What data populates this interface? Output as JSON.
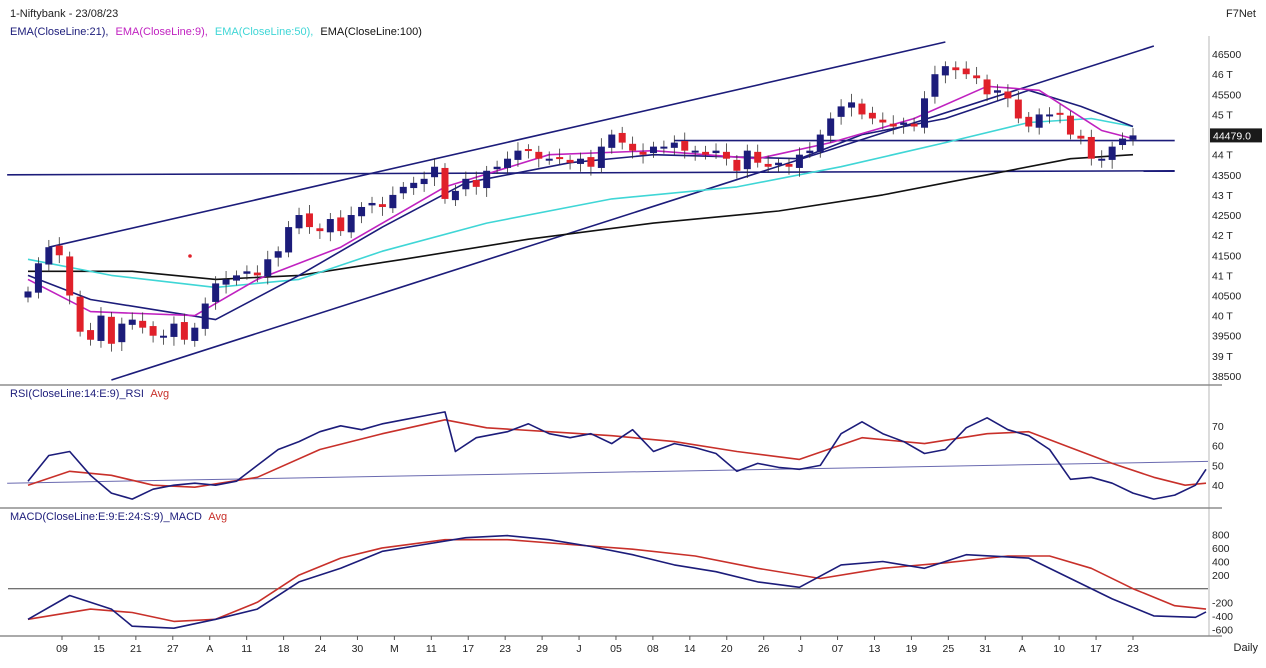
{
  "header": {
    "title": "1-Niftybank - 23/08/23",
    "brand": "F7Net",
    "ema_labels": [
      {
        "text": "EMA(CloseLine:21),",
        "color": "#1c1c7a"
      },
      {
        "text": "EMA(CloseLine:9),",
        "color": "#c022c0"
      },
      {
        "text": "EMA(CloseLine:50),",
        "color": "#3fd6d6"
      },
      {
        "text": "EMA(CloseLine:100)",
        "color": "#111111"
      }
    ],
    "rsi_label": "RSI(CloseLine:14:E:9)_RSI",
    "rsi_avg": "Avg",
    "macd_label": "MACD(CloseLine:E:9:E:24:S:9)_MACD",
    "macd_avg": "Avg",
    "period": "Daily",
    "last_price": "44479.0"
  },
  "colors": {
    "bull": "#1c1c7a",
    "bear": "#e0202a",
    "ema9": "#c022c0",
    "ema21": "#1c1c7a",
    "ema50": "#3fd6d6",
    "ema100": "#111111",
    "avg": "#c8302a",
    "trend": "#1c1c7a"
  },
  "chart_data": [
    {
      "type": "candlestick",
      "panel": "price",
      "ylim": [
        38300,
        46900
      ],
      "yticks": [
        "46500",
        "46 T",
        "45500",
        "45 T",
        "44500",
        "44 T",
        "43500",
        "43 T",
        "42500",
        "42 T",
        "41500",
        "41 T",
        "40500",
        "40 T",
        "39500",
        "39 T",
        "38500"
      ],
      "x_labels": [
        "09",
        "15",
        "21",
        "27",
        "A",
        "11",
        "18",
        "24",
        "30",
        "M",
        "11",
        "17",
        "23",
        "29",
        "J",
        "05",
        "08",
        "14",
        "20",
        "26",
        "J",
        "07",
        "13",
        "19",
        "25",
        "31",
        "A",
        "10",
        "17",
        "23"
      ],
      "closes": [
        40600,
        41300,
        41700,
        41500,
        40500,
        39600,
        39400,
        40000,
        39300,
        39800,
        39900,
        39700,
        39500,
        39500,
        39800,
        39400,
        39700,
        40300,
        40800,
        40900,
        41000,
        41100,
        41000,
        41400,
        41600,
        42200,
        42500,
        42200,
        42100,
        42400,
        42100,
        42500,
        42700,
        42800,
        42700,
        43000,
        43200,
        43300,
        43400,
        43700,
        42900,
        43100,
        43400,
        43200,
        43600,
        43700,
        43900,
        44100,
        44100,
        43900,
        43900,
        43900,
        43800,
        43900,
        43700,
        44200,
        44500,
        44300,
        44100,
        44000,
        44200,
        44200,
        44300,
        44100,
        44100,
        44000,
        44100,
        43900,
        43600,
        44100,
        43800,
        43700,
        43800,
        43700,
        44000,
        44100,
        44500,
        44900,
        45200,
        45300,
        45000,
        44900,
        44800,
        44700,
        44800,
        44700,
        45400,
        46000,
        46200,
        46100,
        46000,
        45900,
        45500,
        45600,
        45400,
        44900,
        44700,
        45000,
        45000,
        45000,
        44500,
        44400,
        43900,
        43900,
        44200,
        44400,
        44479
      ],
      "ema9_points": [
        [
          0,
          40900
        ],
        [
          6,
          40100
        ],
        [
          16,
          40000
        ],
        [
          22,
          40900
        ],
        [
          30,
          41700
        ],
        [
          40,
          43200
        ],
        [
          50,
          44000
        ],
        [
          60,
          44100
        ],
        [
          70,
          43900
        ],
        [
          77,
          44300
        ],
        [
          85,
          44900
        ],
        [
          92,
          45700
        ],
        [
          97,
          45600
        ],
        [
          103,
          44600
        ],
        [
          106,
          44400
        ]
      ],
      "ema21_points": [
        [
          0,
          41000
        ],
        [
          6,
          40400
        ],
        [
          18,
          39900
        ],
        [
          26,
          41000
        ],
        [
          34,
          42200
        ],
        [
          42,
          43300
        ],
        [
          52,
          43800
        ],
        [
          60,
          44000
        ],
        [
          74,
          43900
        ],
        [
          80,
          44500
        ],
        [
          88,
          44900
        ],
        [
          96,
          45600
        ],
        [
          101,
          45200
        ],
        [
          106,
          44700
        ]
      ],
      "ema50_points": [
        [
          0,
          41400
        ],
        [
          8,
          41000
        ],
        [
          18,
          40700
        ],
        [
          26,
          40900
        ],
        [
          34,
          41600
        ],
        [
          44,
          42300
        ],
        [
          56,
          42900
        ],
        [
          68,
          43200
        ],
        [
          78,
          43700
        ],
        [
          88,
          44300
        ],
        [
          96,
          44800
        ],
        [
          102,
          44900
        ],
        [
          106,
          44700
        ]
      ],
      "ema100_points": [
        [
          0,
          41100
        ],
        [
          10,
          41100
        ],
        [
          18,
          40900
        ],
        [
          26,
          41000
        ],
        [
          36,
          41400
        ],
        [
          48,
          41900
        ],
        [
          60,
          42300
        ],
        [
          72,
          42600
        ],
        [
          82,
          43000
        ],
        [
          92,
          43500
        ],
        [
          100,
          43900
        ],
        [
          106,
          44000
        ]
      ],
      "trendlines": [
        {
          "from": [
            2,
            41700
          ],
          "to": [
            88,
            46800
          ]
        },
        {
          "from": [
            8,
            38400
          ],
          "to": [
            108,
            46700
          ]
        },
        {
          "from": [
            -2,
            43500
          ],
          "to": [
            110,
            43600
          ]
        },
        {
          "from": [
            62,
            44350
          ],
          "to": [
            110,
            44350
          ]
        }
      ]
    },
    {
      "type": "line",
      "panel": "rsi",
      "ylim": [
        30,
        82
      ],
      "yticks": [
        "70",
        "60",
        "50",
        "40"
      ],
      "series": [
        {
          "name": "RSI",
          "points": [
            [
              0,
              42
            ],
            [
              2,
              55
            ],
            [
              4,
              57
            ],
            [
              6,
              45
            ],
            [
              8,
              36
            ],
            [
              10,
              33
            ],
            [
              12,
              38
            ],
            [
              14,
              40
            ],
            [
              16,
              41
            ],
            [
              18,
              40
            ],
            [
              20,
              42
            ],
            [
              22,
              50
            ],
            [
              24,
              58
            ],
            [
              26,
              62
            ],
            [
              28,
              67
            ],
            [
              30,
              70
            ],
            [
              32,
              68
            ],
            [
              34,
              71
            ],
            [
              36,
              73
            ],
            [
              38,
              75
            ],
            [
              40,
              77
            ],
            [
              41,
              57
            ],
            [
              43,
              64
            ],
            [
              46,
              67
            ],
            [
              48,
              71
            ],
            [
              50,
              66
            ],
            [
              52,
              64
            ],
            [
              54,
              66
            ],
            [
              56,
              61
            ],
            [
              58,
              68
            ],
            [
              60,
              57
            ],
            [
              62,
              61
            ],
            [
              64,
              59
            ],
            [
              66,
              56
            ],
            [
              68,
              47
            ],
            [
              70,
              51
            ],
            [
              72,
              49
            ],
            [
              74,
              48
            ],
            [
              76,
              50
            ],
            [
              78,
              66
            ],
            [
              80,
              72
            ],
            [
              82,
              66
            ],
            [
              84,
              62
            ],
            [
              86,
              56
            ],
            [
              88,
              58
            ],
            [
              90,
              69
            ],
            [
              92,
              74
            ],
            [
              94,
              68
            ],
            [
              96,
              65
            ],
            [
              98,
              58
            ],
            [
              100,
              43
            ],
            [
              102,
              44
            ],
            [
              104,
              41
            ],
            [
              106,
              36
            ],
            [
              108,
              33
            ],
            [
              110,
              35
            ],
            [
              112,
              40
            ],
            [
              113,
              48
            ]
          ]
        },
        {
          "name": "Avg",
          "points": [
            [
              0,
              40
            ],
            [
              4,
              47
            ],
            [
              8,
              45
            ],
            [
              12,
              40
            ],
            [
              16,
              39
            ],
            [
              22,
              44
            ],
            [
              28,
              58
            ],
            [
              34,
              66
            ],
            [
              40,
              73
            ],
            [
              44,
              69
            ],
            [
              50,
              67
            ],
            [
              56,
              65
            ],
            [
              62,
              62
            ],
            [
              68,
              57
            ],
            [
              74,
              53
            ],
            [
              80,
              64
            ],
            [
              86,
              61
            ],
            [
              92,
              66
            ],
            [
              96,
              67
            ],
            [
              100,
              59
            ],
            [
              104,
              51
            ],
            [
              108,
              44
            ],
            [
              111,
              40
            ],
            [
              113,
              41
            ]
          ]
        }
      ],
      "trendlines": [
        {
          "from": [
            -2,
            41
          ],
          "to": [
            128,
            52
          ]
        }
      ]
    },
    {
      "type": "line",
      "panel": "macd",
      "ylim": [
        -680,
        980
      ],
      "yticks": [
        "800",
        "600",
        "400",
        "200",
        "-200",
        "-400",
        "-600"
      ],
      "zero_line": 0,
      "series": [
        {
          "name": "MACD",
          "points": [
            [
              0,
              -450
            ],
            [
              4,
              -100
            ],
            [
              8,
              -300
            ],
            [
              10,
              -550
            ],
            [
              14,
              -580
            ],
            [
              18,
              -450
            ],
            [
              22,
              -300
            ],
            [
              26,
              100
            ],
            [
              30,
              300
            ],
            [
              34,
              550
            ],
            [
              38,
              650
            ],
            [
              42,
              750
            ],
            [
              46,
              780
            ],
            [
              50,
              720
            ],
            [
              54,
              620
            ],
            [
              58,
              500
            ],
            [
              62,
              350
            ],
            [
              66,
              250
            ],
            [
              70,
              100
            ],
            [
              74,
              20
            ],
            [
              78,
              350
            ],
            [
              82,
              400
            ],
            [
              86,
              300
            ],
            [
              90,
              500
            ],
            [
              96,
              450
            ],
            [
              100,
              150
            ],
            [
              104,
              -150
            ],
            [
              108,
              -400
            ],
            [
              112,
              -420
            ],
            [
              113,
              -340
            ]
          ]
        },
        {
          "name": "Avg",
          "points": [
            [
              0,
              -450
            ],
            [
              6,
              -300
            ],
            [
              10,
              -350
            ],
            [
              14,
              -480
            ],
            [
              18,
              -450
            ],
            [
              22,
              -200
            ],
            [
              26,
              200
            ],
            [
              30,
              450
            ],
            [
              34,
              600
            ],
            [
              40,
              720
            ],
            [
              46,
              720
            ],
            [
              52,
              650
            ],
            [
              58,
              580
            ],
            [
              64,
              480
            ],
            [
              70,
              300
            ],
            [
              76,
              150
            ],
            [
              82,
              300
            ],
            [
              88,
              380
            ],
            [
              94,
              480
            ],
            [
              98,
              480
            ],
            [
              102,
              300
            ],
            [
              106,
              0
            ],
            [
              110,
              -250
            ],
            [
              113,
              -300
            ]
          ]
        }
      ]
    }
  ]
}
